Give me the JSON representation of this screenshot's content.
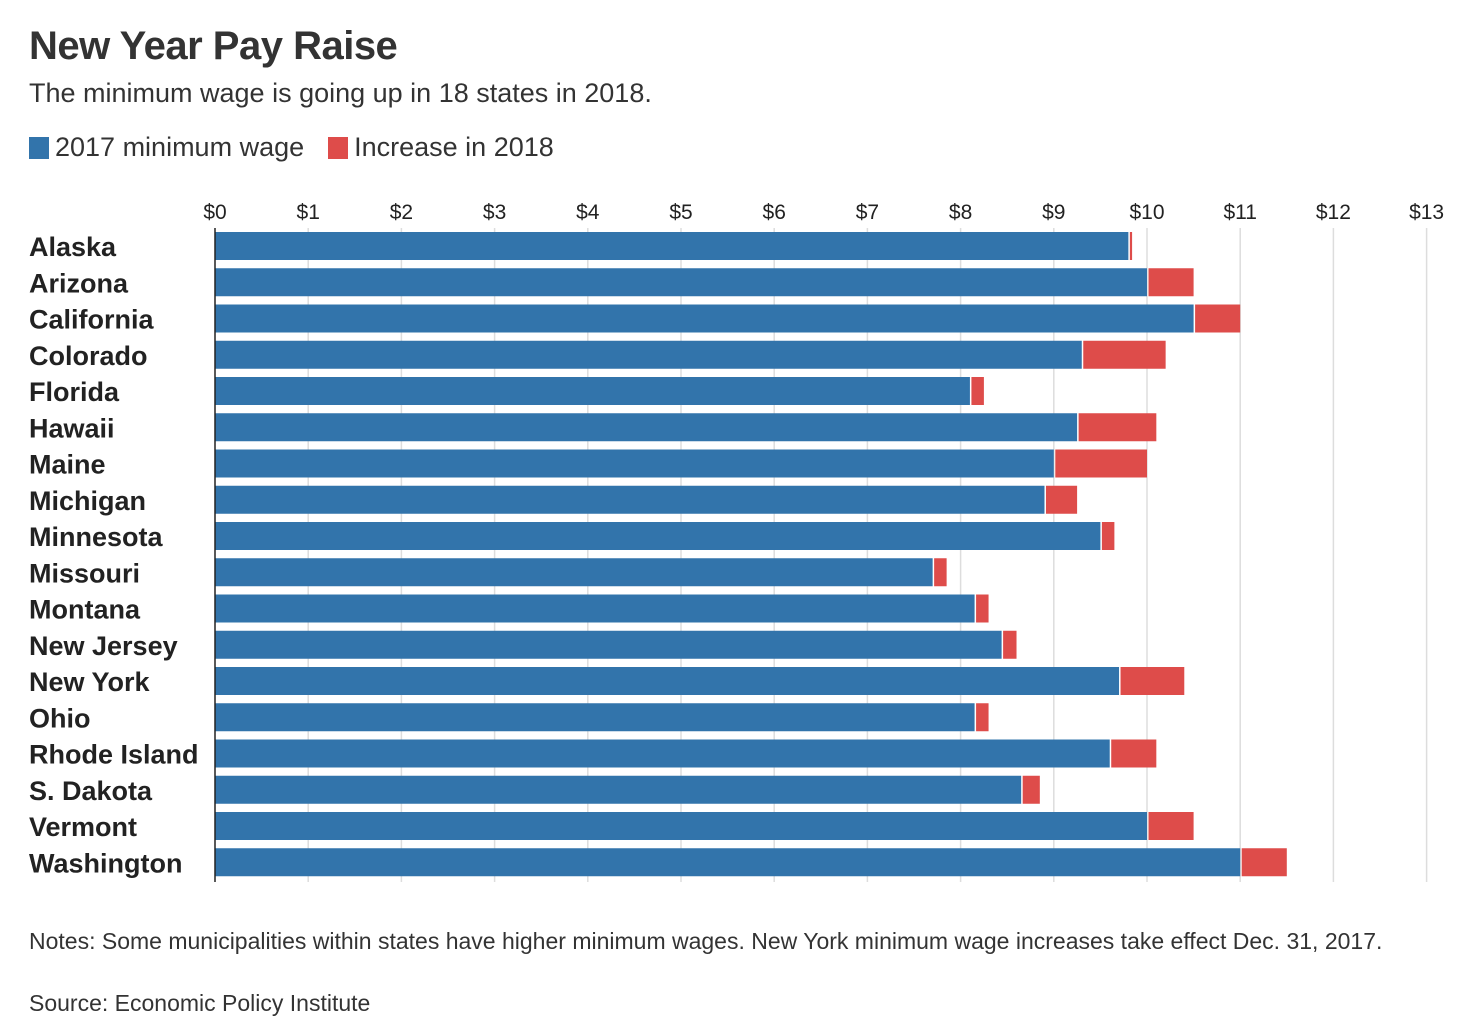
{
  "header": {
    "title": "New Year Pay Raise",
    "subtitle": "The minimum wage is going up in 18 states in 2018."
  },
  "legend": {
    "base_label": "2017 minimum wage",
    "increase_label": "Increase in 2018"
  },
  "colors": {
    "base": "#3274ab",
    "increase": "#de4c4a",
    "grid": "#dddddd",
    "axis": "#222222"
  },
  "chart_data": {
    "type": "bar",
    "orientation": "horizontal",
    "stacked": true,
    "categories": [
      "Alaska",
      "Arizona",
      "California",
      "Colorado",
      "Florida",
      "Hawaii",
      "Maine",
      "Michigan",
      "Minnesota",
      "Missouri",
      "Montana",
      "New Jersey",
      "New York",
      "Ohio",
      "Rhode Island",
      "S. Dakota",
      "Vermont",
      "Washington"
    ],
    "series": [
      {
        "name": "2017 minimum wage",
        "values": [
          9.8,
          10.0,
          10.5,
          9.3,
          8.1,
          9.25,
          9.0,
          8.9,
          9.5,
          7.7,
          8.15,
          8.44,
          9.7,
          8.15,
          9.6,
          8.65,
          10.0,
          11.0
        ]
      },
      {
        "name": "Increase in 2018",
        "values": [
          0.04,
          0.5,
          0.5,
          0.9,
          0.15,
          0.85,
          1.0,
          0.35,
          0.15,
          0.15,
          0.15,
          0.16,
          0.7,
          0.15,
          0.5,
          0.2,
          0.5,
          0.5
        ]
      }
    ],
    "xticks": [
      "$0",
      "$1",
      "$2",
      "$3",
      "$4",
      "$5",
      "$6",
      "$7",
      "$8",
      "$9",
      "$10",
      "$11",
      "$12",
      "$13"
    ],
    "xlim": [
      0,
      13
    ],
    "grid": true
  },
  "footer": {
    "notes": "Notes: Some municipalities within states have higher minimum wages. New York minimum wage increases take effect Dec. 31, 2017.",
    "source": "Source: Economic Policy Institute"
  }
}
